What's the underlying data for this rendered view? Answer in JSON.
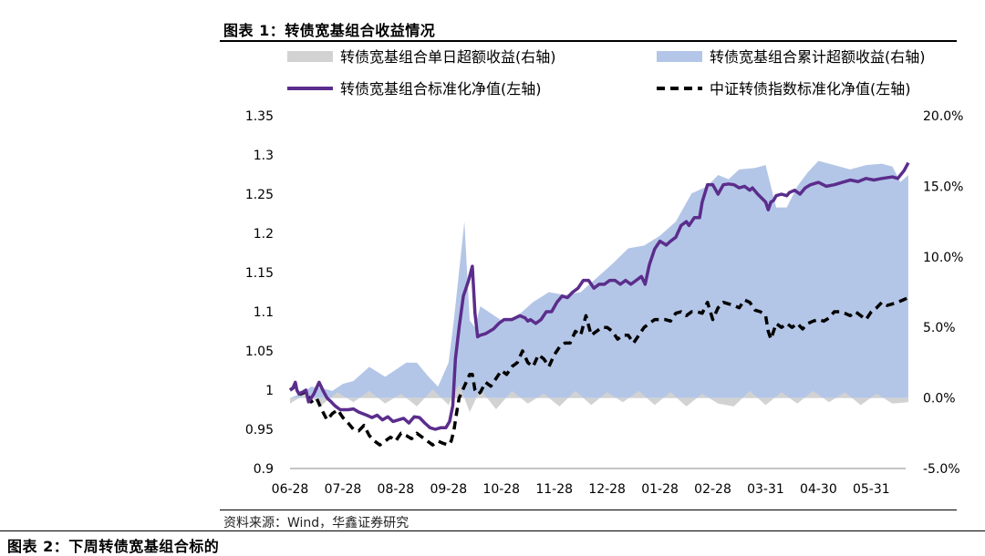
{
  "header": {
    "figure_title": "图表 1：转债宽基组合收益情况"
  },
  "footer": {
    "source": "资料来源：Wind，华鑫证券研究",
    "next_figure_title": "图表 2：下周转债宽基组合标的"
  },
  "colors": {
    "daily_excess": "#d2d2d2",
    "cumulative_excess": "#b4c6e7",
    "portfolio_line": "#5b2d8c",
    "index_line": "#000000"
  },
  "chart_data": {
    "type": "line",
    "x_tick_labels": [
      "06-28",
      "07-28",
      "08-28",
      "09-28",
      "10-28",
      "11-28",
      "12-28",
      "01-28",
      "02-28",
      "03-31",
      "04-30",
      "05-31"
    ],
    "left_axis": {
      "ticks": [
        "0.9",
        "0.95",
        "1",
        "1.05",
        "1.1",
        "1.15",
        "1.2",
        "1.25",
        "1.3",
        "1.35"
      ],
      "ylim": [
        0.9,
        1.35
      ]
    },
    "right_axis": {
      "ticks": [
        "-5.0%",
        "0.0%",
        "5.0%",
        "10.0%",
        "15.0%",
        "20.0%"
      ],
      "ylim": [
        -5,
        20
      ]
    },
    "legend": [
      {
        "name": "转债宽基组合单日超额收益(右轴)",
        "style": "area-gray"
      },
      {
        "name": "转债宽基组合累计超额收益(右轴)",
        "style": "area-blue"
      },
      {
        "name": "转债宽基组合标准化净值(左轴)",
        "style": "line-purple"
      },
      {
        "name": "中证转债指数标准化净值(左轴)",
        "style": "line-dashed"
      }
    ],
    "series": [
      {
        "name": "转债宽基组合单日超额收益(右轴)",
        "axis": "right",
        "type": "area",
        "x": [
          0,
          0.3,
          0.6,
          0.9,
          1.2,
          1.5,
          1.8,
          2.1,
          2.4,
          2.7,
          3.0,
          3.2,
          3.4,
          3.6,
          3.9,
          4.2,
          4.5,
          4.8,
          5.1,
          5.4,
          5.7,
          6.0,
          6.3,
          6.6,
          6.9,
          7.2,
          7.5,
          7.8,
          8.1,
          8.4,
          8.7,
          9.0,
          9.3,
          9.6,
          9.9,
          10.2,
          10.5,
          10.8,
          11.1,
          11.4,
          11.7
        ],
        "y": [
          -0.4,
          0.3,
          -0.5,
          0.4,
          -0.3,
          0.5,
          -0.4,
          0.3,
          -0.6,
          0.6,
          -0.5,
          1.0,
          -1.0,
          0.6,
          -0.8,
          0.5,
          -0.4,
          0.3,
          -0.6,
          0.5,
          -0.5,
          0.4,
          -0.3,
          0.5,
          -0.5,
          0.4,
          -0.6,
          0.3,
          -0.4,
          -0.6,
          0.5,
          -0.5,
          0.4,
          -0.4,
          0.5,
          -0.3,
          0.4,
          -0.5,
          0.3,
          -0.4,
          -0.3
        ]
      },
      {
        "name": "转债宽基组合累计超额收益(右轴)",
        "axis": "right",
        "type": "area",
        "x": [
          0,
          0.2,
          0.4,
          0.6,
          0.8,
          1.0,
          1.2,
          1.5,
          1.8,
          2.0,
          2.2,
          2.4,
          2.6,
          2.8,
          3.0,
          3.1,
          3.2,
          3.3,
          3.4,
          3.5,
          3.6,
          3.8,
          4.0,
          4.3,
          4.6,
          4.9,
          5.2,
          5.5,
          5.8,
          6.1,
          6.4,
          6.7,
          7.0,
          7.3,
          7.6,
          7.9,
          8.1,
          8.3,
          8.5,
          8.8,
          9.0,
          9.2,
          9.4,
          9.6,
          9.8,
          10.0,
          10.3,
          10.6,
          10.9,
          11.2,
          11.4,
          11.55,
          11.7
        ],
        "y": [
          0,
          0.3,
          0.8,
          0.7,
          0.5,
          1.0,
          1.2,
          2.2,
          1.5,
          2.0,
          2.5,
          2.5,
          1.6,
          0.8,
          2.5,
          5.5,
          9.0,
          12.5,
          5.5,
          5.0,
          6.5,
          6.0,
          5.5,
          5.8,
          6.8,
          7.5,
          7.3,
          7.5,
          8.5,
          9.5,
          10.6,
          10.8,
          11.5,
          12.5,
          14.5,
          15.0,
          15.8,
          15.5,
          16.2,
          16.3,
          16.5,
          13.5,
          13.5,
          15.0,
          16.0,
          16.8,
          16.5,
          16.2,
          16.5,
          16.6,
          16.4,
          15.3,
          15.8
        ]
      },
      {
        "name": "转债宽基组合标准化净值(左轴)",
        "axis": "left",
        "type": "line",
        "x": [
          0,
          0.05,
          0.1,
          0.13,
          0.17,
          0.25,
          0.3,
          0.35,
          0.45,
          0.55,
          0.62,
          0.7,
          0.78,
          0.85,
          0.95,
          1.02,
          1.1,
          1.2,
          1.3,
          1.45,
          1.55,
          1.65,
          1.75,
          1.85,
          1.95,
          2.05,
          2.15,
          2.25,
          2.35,
          2.45,
          2.55,
          2.65,
          2.75,
          2.85,
          2.95,
          3.02,
          3.08,
          3.13,
          3.2,
          3.28,
          3.38,
          3.45,
          3.5,
          3.55,
          3.6,
          3.7,
          3.85,
          3.95,
          4.05,
          4.2,
          4.35,
          4.45,
          4.5,
          4.55,
          4.65,
          4.75,
          4.85,
          4.95,
          5.05,
          5.15,
          5.25,
          5.35,
          5.45,
          5.55,
          5.65,
          5.75,
          5.85,
          5.95,
          6.05,
          6.15,
          6.25,
          6.35,
          6.45,
          6.55,
          6.65,
          6.72,
          6.8,
          6.9,
          7.0,
          7.05,
          7.12,
          7.2,
          7.3,
          7.4,
          7.5,
          7.55,
          7.65,
          7.75,
          7.8,
          7.9,
          8.0,
          8.1,
          8.2,
          8.3,
          8.4,
          8.5,
          8.6,
          8.7,
          8.75,
          8.85,
          9.0,
          9.05,
          9.1,
          9.15,
          9.2,
          9.3,
          9.4,
          9.45,
          9.55,
          9.65,
          9.75,
          9.85,
          10.0,
          10.15,
          10.3,
          10.45,
          10.6,
          10.75,
          10.9,
          11.05,
          11.2,
          11.4,
          11.5,
          11.62,
          11.7
        ],
        "y": [
          1.0,
          1.002,
          1.01,
          1.0,
          0.995,
          0.998,
          1.0,
          0.985,
          0.995,
          1.01,
          1.0,
          0.99,
          0.985,
          0.98,
          0.975,
          0.975,
          0.975,
          0.976,
          0.972,
          0.968,
          0.965,
          0.968,
          0.962,
          0.966,
          0.96,
          0.962,
          0.964,
          0.958,
          0.966,
          0.965,
          0.958,
          0.952,
          0.95,
          0.952,
          0.952,
          0.96,
          0.98,
          1.04,
          1.08,
          1.12,
          1.14,
          1.158,
          1.098,
          1.068,
          1.07,
          1.072,
          1.078,
          1.085,
          1.09,
          1.09,
          1.095,
          1.092,
          1.088,
          1.09,
          1.085,
          1.09,
          1.1,
          1.1,
          1.112,
          1.12,
          1.118,
          1.125,
          1.13,
          1.14,
          1.14,
          1.13,
          1.135,
          1.135,
          1.14,
          1.14,
          1.135,
          1.14,
          1.135,
          1.14,
          1.145,
          1.135,
          1.16,
          1.18,
          1.19,
          1.188,
          1.185,
          1.19,
          1.195,
          1.21,
          1.215,
          1.21,
          1.22,
          1.22,
          1.24,
          1.262,
          1.262,
          1.25,
          1.262,
          1.263,
          1.262,
          1.258,
          1.26,
          1.255,
          1.258,
          1.25,
          1.24,
          1.23,
          1.24,
          1.242,
          1.248,
          1.25,
          1.248,
          1.252,
          1.255,
          1.25,
          1.258,
          1.262,
          1.265,
          1.26,
          1.262,
          1.265,
          1.268,
          1.266,
          1.27,
          1.268,
          1.27,
          1.272,
          1.27,
          1.28,
          1.29
        ]
      },
      {
        "name": "中证转债指数标准化净值(左轴)",
        "axis": "left",
        "type": "line",
        "x": [
          0,
          0.1,
          0.2,
          0.3,
          0.4,
          0.5,
          0.6,
          0.7,
          0.8,
          0.9,
          1.0,
          1.1,
          1.2,
          1.3,
          1.4,
          1.5,
          1.6,
          1.7,
          1.8,
          1.9,
          2.0,
          2.1,
          2.2,
          2.3,
          2.4,
          2.5,
          2.6,
          2.7,
          2.8,
          2.9,
          3.0,
          3.05,
          3.1,
          3.15,
          3.2,
          3.3,
          3.4,
          3.45,
          3.5,
          3.55,
          3.6,
          3.7,
          3.8,
          3.9,
          4.0,
          4.1,
          4.2,
          4.3,
          4.4,
          4.5,
          4.6,
          4.7,
          4.8,
          4.9,
          5.0,
          5.1,
          5.2,
          5.3,
          5.4,
          5.5,
          5.6,
          5.7,
          5.8,
          5.9,
          6.0,
          6.1,
          6.2,
          6.3,
          6.4,
          6.5,
          6.6,
          6.7,
          6.8,
          6.9,
          7.0,
          7.1,
          7.2,
          7.3,
          7.4,
          7.5,
          7.6,
          7.7,
          7.8,
          7.9,
          8.0,
          8.1,
          8.2,
          8.3,
          8.4,
          8.5,
          8.6,
          8.7,
          8.8,
          8.9,
          9.0,
          9.05,
          9.1,
          9.2,
          9.3,
          9.4,
          9.5,
          9.6,
          9.7,
          9.8,
          9.9,
          10.0,
          10.1,
          10.2,
          10.3,
          10.4,
          10.5,
          10.6,
          10.7,
          10.8,
          10.9,
          11.0,
          11.1,
          11.2,
          11.3,
          11.4,
          11.5,
          11.6,
          11.7
        ],
        "y": [
          1.0,
          1.005,
          0.995,
          0.998,
          0.985,
          0.99,
          0.975,
          0.962,
          0.97,
          0.975,
          0.965,
          0.958,
          0.95,
          0.948,
          0.955,
          0.942,
          0.935,
          0.93,
          0.935,
          0.94,
          0.935,
          0.945,
          0.942,
          0.938,
          0.945,
          0.94,
          0.935,
          0.93,
          0.935,
          0.932,
          0.93,
          0.935,
          0.948,
          0.97,
          0.99,
          1.005,
          1.02,
          1.02,
          1.0,
          0.995,
          0.997,
          1.01,
          1.005,
          1.015,
          1.025,
          1.02,
          1.03,
          1.035,
          1.05,
          1.035,
          1.03,
          1.045,
          1.04,
          1.03,
          1.045,
          1.055,
          1.06,
          1.06,
          1.075,
          1.07,
          1.095,
          1.07,
          1.075,
          1.08,
          1.08,
          1.075,
          1.065,
          1.07,
          1.07,
          1.06,
          1.07,
          1.08,
          1.085,
          1.09,
          1.09,
          1.09,
          1.088,
          1.098,
          1.1,
          1.095,
          1.1,
          1.1,
          1.098,
          1.112,
          1.09,
          1.105,
          1.112,
          1.11,
          1.108,
          1.105,
          1.115,
          1.112,
          1.102,
          1.1,
          1.095,
          1.075,
          1.065,
          1.085,
          1.08,
          1.085,
          1.08,
          1.085,
          1.078,
          1.085,
          1.088,
          1.09,
          1.088,
          1.092,
          1.1,
          1.1,
          1.098,
          1.095,
          1.1,
          1.095,
          1.09,
          1.1,
          1.105,
          1.112,
          1.108,
          1.11,
          1.112,
          1.115,
          1.118
        ]
      }
    ]
  }
}
